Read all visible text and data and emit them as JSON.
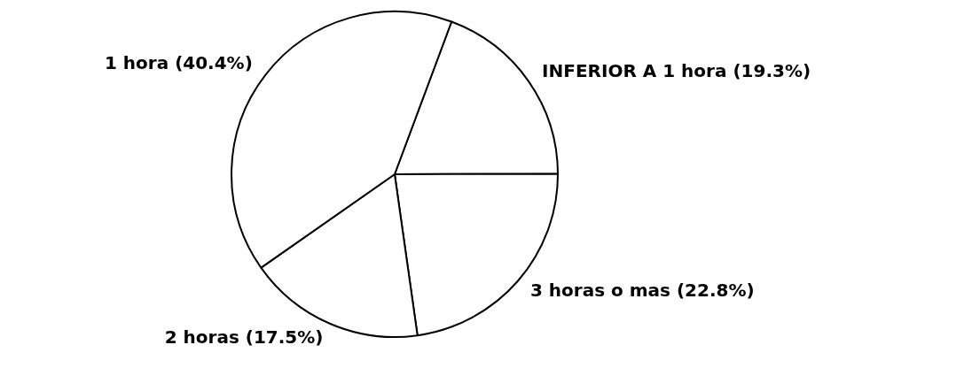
{
  "chart_data": {
    "type": "pie",
    "categories": [
      "INFERIOR A 1 hora",
      "3 horas o mas",
      "2 horas",
      "1 hora"
    ],
    "values": [
      19.3,
      22.8,
      17.5,
      40.4
    ],
    "value_labels": [
      "(19.3%)",
      "(22.8%)",
      "(17.5%)",
      "(40.4%)"
    ],
    "colors": [
      "#ffffff",
      "#ffffff",
      "#ffffff",
      "#ffffff"
    ],
    "legend": false
  }
}
